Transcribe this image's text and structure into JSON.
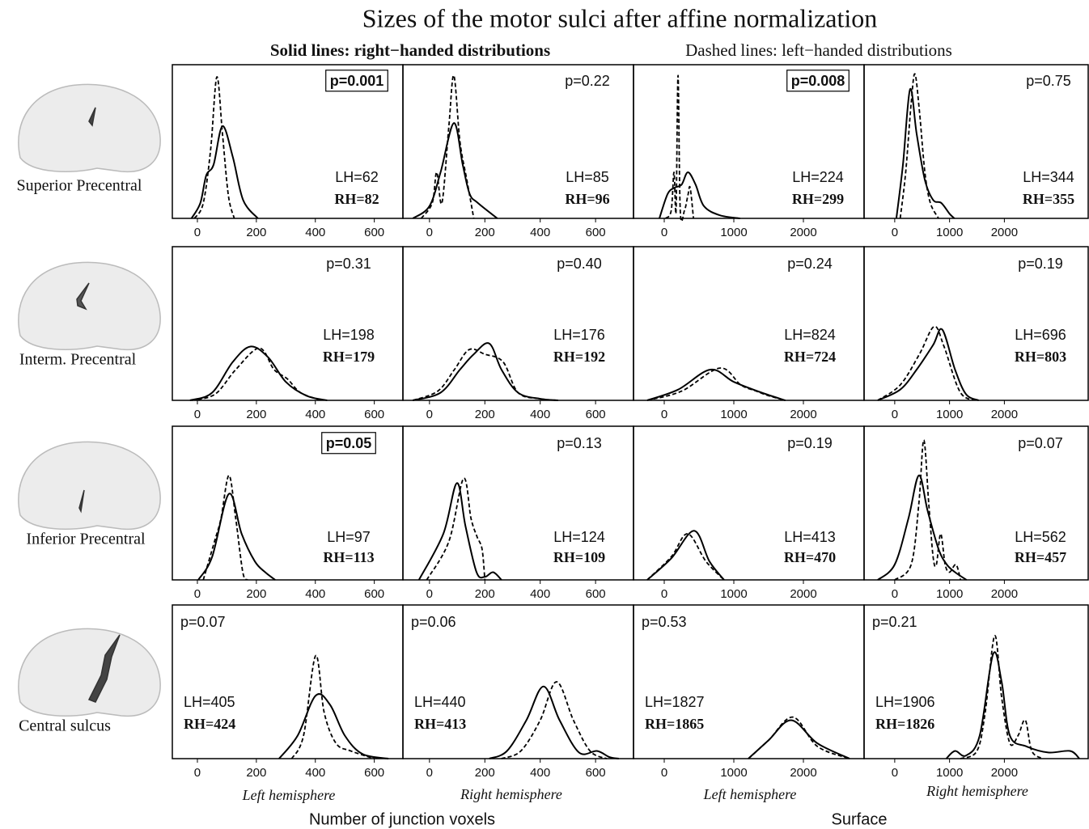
{
  "title": "Sizes of the motor sulci after affine normalization",
  "legend": {
    "solid": "Solid lines: right−handed distributions",
    "dashed": "Dashed lines: left−handed distributions"
  },
  "row_labels": [
    "Superior Precentral",
    "Interm. Precentral",
    "Inferior Precentral",
    "Central sulcus"
  ],
  "column_labels": [
    "Left hemisphere",
    "Right hemisphere",
    "Left hemisphere",
    "Right hemisphere"
  ],
  "measure_labels": [
    "Number of junction voxels",
    "Surface"
  ],
  "chart_data": [
    {
      "type": "line",
      "xlim": [
        -85,
        697
      ],
      "xticks": [
        0,
        200,
        400,
        600
      ],
      "ylim": [
        0,
        1
      ],
      "p_label": "p=0.001",
      "p_boxed": true,
      "lh_label": "LH=62",
      "rh_label": "RH=82",
      "series": [
        {
          "style": "solid",
          "color": "#000000",
          "x": [
            -20,
            10,
            30,
            55,
            85,
            120,
            155,
            205
          ],
          "values": [
            0,
            0.1,
            0.28,
            0.35,
            0.6,
            0.4,
            0.12,
            0
          ]
        },
        {
          "style": "dashed",
          "color": "#000000",
          "x": [
            -10,
            20,
            45,
            66,
            85,
            105,
            125
          ],
          "values": [
            0,
            0.1,
            0.45,
            0.92,
            0.55,
            0.15,
            0
          ]
        }
      ]
    },
    {
      "type": "line",
      "xlim": [
        -96,
        737
      ],
      "xticks": [
        0,
        200,
        400,
        600
      ],
      "ylim": [
        0,
        1
      ],
      "p_label": "p=0.22",
      "p_boxed": false,
      "lh_label": "LH=85",
      "rh_label": "RH=96",
      "series": [
        {
          "style": "solid",
          "color": "#000000",
          "x": [
            -60,
            0,
            40,
            88,
            120,
            145,
            175,
            245
          ],
          "values": [
            0,
            0.08,
            0.3,
            0.62,
            0.35,
            0.16,
            0.1,
            0
          ]
        },
        {
          "style": "dashed",
          "color": "#000000",
          "x": [
            -30,
            10,
            26,
            45,
            70,
            88,
            110,
            135,
            160
          ],
          "values": [
            0,
            0.1,
            0.3,
            0.1,
            0.6,
            0.93,
            0.5,
            0.25,
            0
          ]
        }
      ]
    },
    {
      "type": "line",
      "xlim": [
        -442,
        2872
      ],
      "xticks": [
        0,
        1000,
        2000
      ],
      "ylim": [
        0,
        1
      ],
      "p_label": "p=0.008",
      "p_boxed": true,
      "lh_label": "LH=224",
      "rh_label": "RH=299",
      "series": [
        {
          "style": "solid",
          "color": "#000000",
          "x": [
            -70,
            50,
            150,
            250,
            340,
            450,
            570,
            800,
            1090
          ],
          "values": [
            0,
            0.16,
            0.2,
            0.22,
            0.3,
            0.22,
            0.08,
            0.02,
            0
          ]
        },
        {
          "style": "dashed",
          "color": "#000000",
          "x": [
            20,
            100,
            140,
            170,
            198,
            230,
            290,
            340,
            372,
            420
          ],
          "values": [
            0,
            0.05,
            0.3,
            0.05,
            0.93,
            0.05,
            0.05,
            0.15,
            0.2,
            0
          ]
        }
      ]
    },
    {
      "type": "line",
      "xlim": [
        -559,
        3529
      ],
      "xticks": [
        0,
        1000,
        2000
      ],
      "ylim": [
        0,
        1
      ],
      "p_label": "p=0.75",
      "p_boxed": false,
      "lh_label": "LH=344",
      "rh_label": "RH=355",
      "series": [
        {
          "style": "solid",
          "color": "#000000",
          "x": [
            30,
            150,
            280,
            400,
            550,
            700,
            850,
            1000,
            1090
          ],
          "values": [
            0,
            0.35,
            0.84,
            0.55,
            0.25,
            0.12,
            0.1,
            0.03,
            0
          ]
        },
        {
          "style": "dashed",
          "color": "#000000",
          "x": [
            100,
            200,
            300,
            368,
            450,
            550,
            650,
            800
          ],
          "values": [
            0,
            0.3,
            0.75,
            0.94,
            0.7,
            0.3,
            0.1,
            0
          ]
        }
      ]
    },
    {
      "type": "line",
      "xlim": [
        -85,
        697
      ],
      "xticks": [
        0,
        200,
        400,
        600
      ],
      "ylim": [
        0,
        1
      ],
      "p_label": "p=0.31",
      "p_boxed": false,
      "lh_label": "LH=198",
      "rh_label": "RH=179",
      "series": [
        {
          "style": "solid",
          "color": "#000000",
          "x": [
            -25,
            50,
            120,
            180,
            240,
            300,
            370,
            440
          ],
          "values": [
            0,
            0.05,
            0.25,
            0.35,
            0.28,
            0.12,
            0.03,
            0
          ]
        },
        {
          "style": "dashed",
          "color": "#000000",
          "x": [
            -20,
            60,
            130,
            210,
            260,
            305,
            350,
            420
          ],
          "values": [
            0,
            0.04,
            0.2,
            0.34,
            0.2,
            0.14,
            0.05,
            0
          ]
        }
      ]
    },
    {
      "type": "line",
      "xlim": [
        -96,
        737
      ],
      "xticks": [
        0,
        200,
        400,
        600
      ],
      "ylim": [
        0,
        1
      ],
      "p_label": "p=0.40",
      "p_boxed": false,
      "lh_label": "LH=176",
      "rh_label": "RH=192",
      "series": [
        {
          "style": "solid",
          "color": "#000000",
          "x": [
            -60,
            40,
            110,
            160,
            216,
            260,
            320,
            400,
            465
          ],
          "values": [
            0,
            0.05,
            0.2,
            0.3,
            0.37,
            0.2,
            0.05,
            0.01,
            0
          ]
        },
        {
          "style": "dashed",
          "color": "#000000",
          "x": [
            -60,
            30,
            90,
            143,
            200,
            266,
            320,
            400,
            465
          ],
          "values": [
            0,
            0.06,
            0.2,
            0.33,
            0.3,
            0.25,
            0.05,
            0.01,
            0
          ]
        }
      ]
    },
    {
      "type": "line",
      "xlim": [
        -442,
        2872
      ],
      "xticks": [
        0,
        1000,
        2000
      ],
      "ylim": [
        0,
        1
      ],
      "p_label": "p=0.24",
      "p_boxed": false,
      "lh_label": "LH=824",
      "rh_label": "RH=724",
      "series": [
        {
          "style": "solid",
          "color": "#000000",
          "x": [
            -245,
            200,
            663,
            1000,
            1400,
            1740
          ],
          "values": [
            0,
            0.07,
            0.2,
            0.12,
            0.05,
            0
          ]
        },
        {
          "style": "dashed",
          "color": "#000000",
          "x": [
            -245,
            250,
            800,
            1100,
            1325,
            1500,
            1740
          ],
          "values": [
            0,
            0.06,
            0.21,
            0.1,
            0.06,
            0.03,
            0
          ]
        }
      ]
    },
    {
      "type": "line",
      "xlim": [
        -559,
        3529
      ],
      "xticks": [
        0,
        1000,
        2000
      ],
      "ylim": [
        0,
        1
      ],
      "p_label": "p=0.19",
      "p_boxed": false,
      "lh_label": "LH=696",
      "rh_label": "RH=803",
      "series": [
        {
          "style": "solid",
          "color": "#000000",
          "x": [
            -310,
            100,
            400,
            700,
            868,
            1100,
            1300,
            1530
          ],
          "values": [
            0,
            0.07,
            0.2,
            0.36,
            0.46,
            0.2,
            0.04,
            0
          ]
        },
        {
          "style": "dashed",
          "color": "#000000",
          "x": [
            -310,
            100,
            450,
            720,
            900,
            1200,
            1530
          ],
          "values": [
            0,
            0.1,
            0.3,
            0.48,
            0.35,
            0.05,
            0
          ]
        }
      ]
    },
    {
      "type": "line",
      "xlim": [
        -85,
        697
      ],
      "xticks": [
        0,
        200,
        400,
        600
      ],
      "ylim": [
        0,
        1
      ],
      "p_label": "p=0.05",
      "p_boxed": true,
      "lh_label": "LH=97",
      "rh_label": "RH=113",
      "series": [
        {
          "style": "solid",
          "color": "#000000",
          "x": [
            3,
            50,
            107,
            150,
            195,
            230,
            264
          ],
          "values": [
            0,
            0.15,
            0.56,
            0.3,
            0.12,
            0.05,
            0
          ]
        },
        {
          "style": "dashed",
          "color": "#000000",
          "x": [
            20,
            58,
            80,
            107,
            130,
            154,
            170
          ],
          "values": [
            0,
            0.25,
            0.4,
            0.68,
            0.4,
            0.05,
            0
          ]
        }
      ]
    },
    {
      "type": "line",
      "xlim": [
        -96,
        737
      ],
      "xticks": [
        0,
        200,
        400,
        600
      ],
      "ylim": [
        0,
        1
      ],
      "p_label": "p=0.13",
      "p_boxed": false,
      "lh_label": "LH=124",
      "rh_label": "RH=109",
      "series": [
        {
          "style": "solid",
          "color": "#000000",
          "x": [
            -38,
            50,
            99,
            130,
            170,
            200,
            230,
            260
          ],
          "values": [
            0,
            0.3,
            0.63,
            0.35,
            0.05,
            0.02,
            0.05,
            0
          ]
        },
        {
          "style": "dashed",
          "color": "#000000",
          "x": [
            -10,
            70,
            123,
            150,
            172,
            190,
            200
          ],
          "values": [
            0,
            0.25,
            0.66,
            0.4,
            0.28,
            0.2,
            0
          ]
        }
      ]
    },
    {
      "type": "line",
      "xlim": [
        -442,
        2872
      ],
      "xticks": [
        0,
        1000,
        2000
      ],
      "ylim": [
        0,
        1
      ],
      "p_label": "p=0.19",
      "p_boxed": false,
      "lh_label": "LH=413",
      "rh_label": "RH=470",
      "series": [
        {
          "style": "solid",
          "color": "#000000",
          "x": [
            -245,
            100,
            430,
            650,
            860
          ],
          "values": [
            0,
            0.14,
            0.32,
            0.12,
            0
          ]
        },
        {
          "style": "dashed",
          "color": "#000000",
          "x": [
            -245,
            100,
            337,
            600,
            860
          ],
          "values": [
            0,
            0.15,
            0.3,
            0.12,
            0
          ]
        }
      ]
    },
    {
      "type": "line",
      "xlim": [
        -559,
        3529
      ],
      "xticks": [
        0,
        1000,
        2000
      ],
      "ylim": [
        0,
        1
      ],
      "p_label": "p=0.07",
      "p_boxed": false,
      "lh_label": "LH=562",
      "rh_label": "RH=457",
      "series": [
        {
          "style": "solid",
          "color": "#000000",
          "x": [
            -310,
            0,
            250,
            441,
            600,
            800,
            950,
            1100,
            1310
          ],
          "values": [
            0,
            0.1,
            0.4,
            0.68,
            0.45,
            0.2,
            0.1,
            0.05,
            0
          ]
        },
        {
          "style": "dashed",
          "color": "#000000",
          "x": [
            0,
            300,
            441,
            530,
            620,
            700,
            760,
            838,
            920,
            1000,
            1118,
            1200
          ],
          "values": [
            0,
            0.1,
            0.5,
            0.91,
            0.5,
            0.15,
            0.1,
            0.3,
            0.1,
            0.05,
            0.1,
            0
          ]
        }
      ]
    },
    {
      "type": "line",
      "xlim": [
        -85,
        697
      ],
      "xticks": [
        0,
        200,
        400,
        600
      ],
      "ylim": [
        0,
        1
      ],
      "p_label": "p=0.07",
      "p_boxed": false,
      "lh_label": "LH=405",
      "rh_label": "RH=424",
      "series": [
        {
          "style": "solid",
          "color": "#000000",
          "x": [
            277,
            340,
            401,
            450,
            500,
            560,
            648
          ],
          "values": [
            0,
            0.15,
            0.41,
            0.35,
            0.15,
            0.03,
            0
          ]
        },
        {
          "style": "dashed",
          "color": "#000000",
          "x": [
            320,
            360,
            401,
            430,
            470,
            520,
            600
          ],
          "values": [
            0,
            0.15,
            0.67,
            0.3,
            0.1,
            0.05,
            0
          ]
        }
      ]
    },
    {
      "type": "line",
      "xlim": [
        -96,
        737
      ],
      "xticks": [
        0,
        200,
        400,
        600
      ],
      "ylim": [
        0,
        1
      ],
      "p_label": "p=0.06",
      "p_boxed": false,
      "lh_label": "LH=440",
      "rh_label": "RH=413",
      "series": [
        {
          "style": "solid",
          "color": "#000000",
          "x": [
            216,
            280,
            350,
            412,
            470,
            540,
            605,
            650,
            684
          ],
          "values": [
            0,
            0.05,
            0.25,
            0.47,
            0.25,
            0.04,
            0.05,
            0.01,
            0
          ]
        },
        {
          "style": "dashed",
          "color": "#000000",
          "x": [
            260,
            330,
            400,
            459,
            520,
            580,
            640
          ],
          "values": [
            0,
            0.05,
            0.25,
            0.5,
            0.25,
            0.05,
            0
          ]
        }
      ]
    },
    {
      "type": "line",
      "xlim": [
        -442,
        2872
      ],
      "xticks": [
        0,
        1000,
        2000
      ],
      "ylim": [
        0,
        1
      ],
      "p_label": "p=0.53",
      "p_boxed": false,
      "lh_label": "LH=1827",
      "rh_label": "RH=1865",
      "series": [
        {
          "style": "solid",
          "color": "#000000",
          "x": [
            1209,
            1500,
            1826,
            2200,
            2663
          ],
          "values": [
            0,
            0.12,
            0.25,
            0.1,
            0
          ]
        },
        {
          "style": "dashed",
          "color": "#000000",
          "x": [
            1209,
            1500,
            1850,
            2200,
            2663
          ],
          "values": [
            0,
            0.12,
            0.27,
            0.08,
            0
          ]
        }
      ]
    },
    {
      "type": "line",
      "xlim": [
        -559,
        3529
      ],
      "xticks": [
        0,
        1000,
        2000
      ],
      "ylim": [
        0,
        1
      ],
      "p_label": "p=0.21",
      "p_boxed": false,
      "lh_label": "LH=1906",
      "rh_label": "RH=1826",
      "series": [
        {
          "style": "solid",
          "color": "#000000",
          "x": [
            941,
            1100,
            1300,
            1550,
            1794,
            1950,
            2100,
            2400,
            2800,
            3200,
            3368
          ],
          "values": [
            0,
            0.05,
            0.02,
            0.15,
            0.68,
            0.5,
            0.15,
            0.08,
            0.04,
            0.05,
            0
          ]
        },
        {
          "style": "dashed",
          "color": "#000000",
          "x": [
            1200,
            1500,
            1650,
            1824,
            1950,
            2100,
            2250,
            2382,
            2500,
            2700
          ],
          "values": [
            0,
            0.05,
            0.3,
            0.8,
            0.4,
            0.1,
            0.15,
            0.25,
            0.05,
            0
          ]
        }
      ]
    }
  ]
}
